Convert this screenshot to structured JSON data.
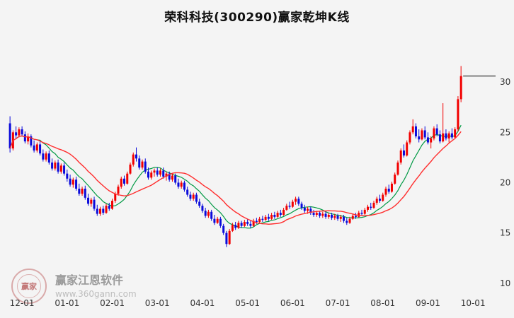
{
  "page": {
    "title": "荣科科技(300290)赢家乾坤K线"
  },
  "watermark": {
    "seal_text": "赢家",
    "brand": "赢家江恩软件",
    "url": "www.360gann.com"
  },
  "chart_data": {
    "type": "candlestick",
    "title": "荣科科技(300290)赢家乾坤K线",
    "ylim": [
      9.0,
      35.0
    ],
    "y_ticks": [
      10,
      15,
      20,
      25,
      30
    ],
    "x_tick_labels": [
      "12-01",
      "01-01",
      "02-01",
      "03-01",
      "04-01",
      "05-01",
      "06-01",
      "07-01",
      "08-01",
      "09-01",
      "10-01"
    ],
    "x_tick_indices": [
      4,
      19,
      34,
      49,
      64,
      79,
      94,
      109,
      124,
      139,
      154
    ],
    "total_slots": 162,
    "legend": "none",
    "grid": "off",
    "last_price": 30.6,
    "ma_periods": {
      "red": 20,
      "green": 10
    },
    "colors": {
      "up": "#f20000",
      "down": "#0b0bdb",
      "ma_red": "#ff2e2e",
      "ma_green": "#009944",
      "last_price_line": "#000000",
      "tick_text": "#333333"
    },
    "candles": [
      [
        25.9,
        26.6,
        23.0,
        23.4
      ],
      [
        23.4,
        25.2,
        23.2,
        25.0
      ],
      [
        25.0,
        25.6,
        24.4,
        24.7
      ],
      [
        24.7,
        25.5,
        24.5,
        25.3
      ],
      [
        25.3,
        25.6,
        24.6,
        24.8
      ],
      [
        24.8,
        25.1,
        23.9,
        24.1
      ],
      [
        24.1,
        24.9,
        23.8,
        24.6
      ],
      [
        24.6,
        24.8,
        23.5,
        23.7
      ],
      [
        23.7,
        24.2,
        23.0,
        23.2
      ],
      [
        23.2,
        24.0,
        23.0,
        23.8
      ],
      [
        23.8,
        24.1,
        22.7,
        22.9
      ],
      [
        22.9,
        23.3,
        22.1,
        22.3
      ],
      [
        22.3,
        23.1,
        22.1,
        22.9
      ],
      [
        22.9,
        23.2,
        21.8,
        22.0
      ],
      [
        22.0,
        22.4,
        21.2,
        21.4
      ],
      [
        21.4,
        22.2,
        21.2,
        22.0
      ],
      [
        22.0,
        22.3,
        20.9,
        21.1
      ],
      [
        21.1,
        21.9,
        20.9,
        21.7
      ],
      [
        21.7,
        22.0,
        20.7,
        20.9
      ],
      [
        20.9,
        21.3,
        20.1,
        20.4
      ],
      [
        20.4,
        20.8,
        19.6,
        19.8
      ],
      [
        19.8,
        20.5,
        19.5,
        20.3
      ],
      [
        20.3,
        20.6,
        19.2,
        19.4
      ],
      [
        19.4,
        19.9,
        18.7,
        18.9
      ],
      [
        18.9,
        19.6,
        18.7,
        19.4
      ],
      [
        19.4,
        19.7,
        18.3,
        18.5
      ],
      [
        18.5,
        18.9,
        17.7,
        17.9
      ],
      [
        17.9,
        18.5,
        17.6,
        18.3
      ],
      [
        18.3,
        18.6,
        17.2,
        17.4
      ],
      [
        17.4,
        17.8,
        16.7,
        16.9
      ],
      [
        16.9,
        17.6,
        16.7,
        17.4
      ],
      [
        17.4,
        17.7,
        16.8,
        17.0
      ],
      [
        17.0,
        17.9,
        16.9,
        17.7
      ],
      [
        17.7,
        18.0,
        17.2,
        17.4
      ],
      [
        17.4,
        18.4,
        17.3,
        18.2
      ],
      [
        18.2,
        19.1,
        18.0,
        18.9
      ],
      [
        18.9,
        19.8,
        18.7,
        19.6
      ],
      [
        19.6,
        20.6,
        19.4,
        20.4
      ],
      [
        20.4,
        20.7,
        19.7,
        19.9
      ],
      [
        19.9,
        21.1,
        19.8,
        20.9
      ],
      [
        20.9,
        22.0,
        20.8,
        21.8
      ],
      [
        21.8,
        23.0,
        21.6,
        22.8
      ],
      [
        22.8,
        23.5,
        22.1,
        22.4
      ],
      [
        22.4,
        22.7,
        21.3,
        21.5
      ],
      [
        21.5,
        22.3,
        21.3,
        22.1
      ],
      [
        22.1,
        22.4,
        20.9,
        21.1
      ],
      [
        21.1,
        21.5,
        20.3,
        20.5
      ],
      [
        20.5,
        21.2,
        20.3,
        21.0
      ],
      [
        21.0,
        21.4,
        20.6,
        21.2
      ],
      [
        21.2,
        21.5,
        20.6,
        20.8
      ],
      [
        20.8,
        21.4,
        20.6,
        21.2
      ],
      [
        21.2,
        21.5,
        20.4,
        20.6
      ],
      [
        20.6,
        21.1,
        20.2,
        20.9
      ],
      [
        20.9,
        21.1,
        20.1,
        20.3
      ],
      [
        20.3,
        20.9,
        20.1,
        20.7
      ],
      [
        20.7,
        20.9,
        19.8,
        20.0
      ],
      [
        20.0,
        20.4,
        19.4,
        19.6
      ],
      [
        19.6,
        20.2,
        19.4,
        20.0
      ],
      [
        20.0,
        20.2,
        19.1,
        19.3
      ],
      [
        19.3,
        19.6,
        18.6,
        18.8
      ],
      [
        18.8,
        19.1,
        18.2,
        18.4
      ],
      [
        18.4,
        19.0,
        18.2,
        18.8
      ],
      [
        18.8,
        19.0,
        17.9,
        18.1
      ],
      [
        18.1,
        18.4,
        17.5,
        17.7
      ],
      [
        17.7,
        17.9,
        17.0,
        17.2
      ],
      [
        17.2,
        17.5,
        16.5,
        16.7
      ],
      [
        16.7,
        17.3,
        16.5,
        17.1
      ],
      [
        17.1,
        17.3,
        16.2,
        16.4
      ],
      [
        16.4,
        16.8,
        15.8,
        16.0
      ],
      [
        16.0,
        16.6,
        15.9,
        16.4
      ],
      [
        16.4,
        16.6,
        15.5,
        15.7
      ],
      [
        15.7,
        15.9,
        14.8,
        15.0
      ],
      [
        15.0,
        15.2,
        13.6,
        13.9
      ],
      [
        13.9,
        15.4,
        13.8,
        15.2
      ],
      [
        15.2,
        16.0,
        15.1,
        15.8
      ],
      [
        15.8,
        16.1,
        15.3,
        15.5
      ],
      [
        15.5,
        16.2,
        15.4,
        16.0
      ],
      [
        16.0,
        16.2,
        15.5,
        15.7
      ],
      [
        15.7,
        16.3,
        15.6,
        16.1
      ],
      [
        16.1,
        16.4,
        15.7,
        15.9
      ],
      [
        15.9,
        16.2,
        15.5,
        15.7
      ],
      [
        15.7,
        16.4,
        15.6,
        16.2
      ],
      [
        16.2,
        16.5,
        15.9,
        16.1
      ],
      [
        16.1,
        16.6,
        16.0,
        16.4
      ],
      [
        16.4,
        16.7,
        16.1,
        16.3
      ],
      [
        16.3,
        16.8,
        16.2,
        16.6
      ],
      [
        16.6,
        16.9,
        16.2,
        16.4
      ],
      [
        16.4,
        17.0,
        16.3,
        16.8
      ],
      [
        16.8,
        17.1,
        16.4,
        16.6
      ],
      [
        16.6,
        17.2,
        16.5,
        17.0
      ],
      [
        17.0,
        17.3,
        16.6,
        16.8
      ],
      [
        16.8,
        17.5,
        16.7,
        17.3
      ],
      [
        17.3,
        17.9,
        17.2,
        17.7
      ],
      [
        17.7,
        18.1,
        17.4,
        17.6
      ],
      [
        17.6,
        18.3,
        17.5,
        18.1
      ],
      [
        18.1,
        18.6,
        17.8,
        18.4
      ],
      [
        18.4,
        18.6,
        17.7,
        17.9
      ],
      [
        17.9,
        18.1,
        17.3,
        17.5
      ],
      [
        17.5,
        17.8,
        17.0,
        17.2
      ],
      [
        17.2,
        17.6,
        16.9,
        17.4
      ],
      [
        17.4,
        17.6,
        16.8,
        17.0
      ],
      [
        17.0,
        17.3,
        16.6,
        16.8
      ],
      [
        16.8,
        17.2,
        16.6,
        17.0
      ],
      [
        17.0,
        17.2,
        16.5,
        16.7
      ],
      [
        16.7,
        17.1,
        16.5,
        16.9
      ],
      [
        16.9,
        17.1,
        16.4,
        16.6
      ],
      [
        16.6,
        17.0,
        16.4,
        16.8
      ],
      [
        16.8,
        17.0,
        16.3,
        16.5
      ],
      [
        16.5,
        16.9,
        16.3,
        16.7
      ],
      [
        16.7,
        16.9,
        16.2,
        16.4
      ],
      [
        16.4,
        16.8,
        16.1,
        16.6
      ],
      [
        16.6,
        16.8,
        16.0,
        16.2
      ],
      [
        16.2,
        16.5,
        15.8,
        16.0
      ],
      [
        16.0,
        16.6,
        15.9,
        16.4
      ],
      [
        16.4,
        16.9,
        16.3,
        16.7
      ],
      [
        16.7,
        17.0,
        16.4,
        16.6
      ],
      [
        16.6,
        17.2,
        16.5,
        17.0
      ],
      [
        17.0,
        17.3,
        16.7,
        16.9
      ],
      [
        16.9,
        17.5,
        16.8,
        17.3
      ],
      [
        17.3,
        17.8,
        17.1,
        17.6
      ],
      [
        17.6,
        18.0,
        17.3,
        17.5
      ],
      [
        17.5,
        18.2,
        17.4,
        18.0
      ],
      [
        18.0,
        18.6,
        17.8,
        18.4
      ],
      [
        18.4,
        18.8,
        18.0,
        18.2
      ],
      [
        18.2,
        19.0,
        18.1,
        18.8
      ],
      [
        18.8,
        19.6,
        18.6,
        19.4
      ],
      [
        19.4,
        19.8,
        18.9,
        19.1
      ],
      [
        19.1,
        20.1,
        19.0,
        19.9
      ],
      [
        19.9,
        21.0,
        19.8,
        20.8
      ],
      [
        20.8,
        22.2,
        20.7,
        22.0
      ],
      [
        22.0,
        23.4,
        21.8,
        23.2
      ],
      [
        23.2,
        23.8,
        22.5,
        22.7
      ],
      [
        22.7,
        24.2,
        22.6,
        24.0
      ],
      [
        24.0,
        25.2,
        23.8,
        25.0
      ],
      [
        25.0,
        26.3,
        24.8,
        25.6
      ],
      [
        25.6,
        25.9,
        24.4,
        24.6
      ],
      [
        24.6,
        25.3,
        24.0,
        24.3
      ],
      [
        24.3,
        25.4,
        24.2,
        25.2
      ],
      [
        25.2,
        25.6,
        24.3,
        24.5
      ],
      [
        24.5,
        25.0,
        23.8,
        24.0
      ],
      [
        24.0,
        24.6,
        23.4,
        24.4
      ],
      [
        24.4,
        25.6,
        24.2,
        25.4
      ],
      [
        25.4,
        25.8,
        24.6,
        24.8
      ],
      [
        24.8,
        25.2,
        23.9,
        24.1
      ],
      [
        24.1,
        27.9,
        24.0,
        24.9
      ],
      [
        24.9,
        25.3,
        24.2,
        24.4
      ],
      [
        24.4,
        25.1,
        24.0,
        24.9
      ],
      [
        24.9,
        25.4,
        24.3,
        24.5
      ],
      [
        24.5,
        25.5,
        24.4,
        25.3
      ],
      [
        25.3,
        28.6,
        25.1,
        28.3
      ],
      [
        28.3,
        31.6,
        28.0,
        30.6
      ]
    ]
  }
}
